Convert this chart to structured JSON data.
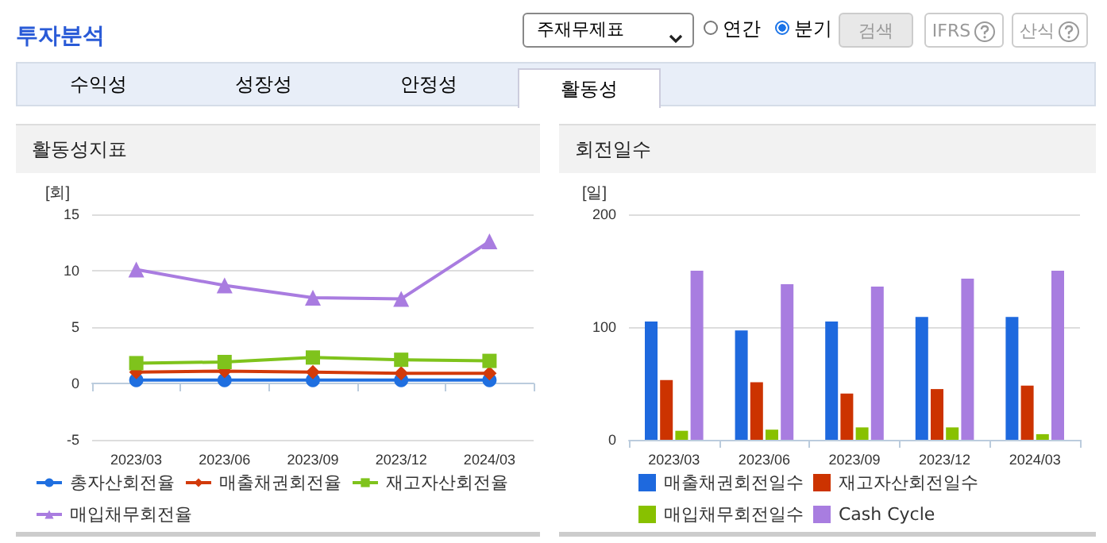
{
  "chart_data": [
    {
      "type": "other",
      "title": "투자분석",
      "annotations": [
        "주재무제표",
        "연간",
        "분기",
        "검색",
        "IFRS",
        "산식",
        "수익성",
        "성장성",
        "안정성",
        "활동성"
      ]
    },
    {
      "type": "line",
      "title": "활동성지표",
      "ylabel": "[회]",
      "categories": [
        "2023/03",
        "2023/06",
        "2023/09",
        "2023/12",
        "2024/03"
      ],
      "ylim": [
        -5,
        15
      ],
      "yticks": [
        -5,
        0,
        5,
        10,
        15
      ],
      "grid": "y",
      "legend": "bottom",
      "line_style": "solid",
      "series": [
        {
          "name": "총자산회전율",
          "color": "#1f6fe0",
          "marker": "circle",
          "values": [
            0.3,
            0.3,
            0.3,
            0.3,
            0.3
          ]
        },
        {
          "name": "매출채권회전율",
          "color": "#d23a0a",
          "marker": "diamond",
          "values": [
            1.0,
            1.1,
            1.0,
            0.9,
            0.9
          ]
        },
        {
          "name": "재고자산회전율",
          "color": "#7fc31c",
          "marker": "square",
          "values": [
            1.8,
            1.9,
            2.3,
            2.1,
            2.0
          ]
        },
        {
          "name": "매입채무회전율",
          "color": "#a97ce0",
          "marker": "triangle",
          "values": [
            10.1,
            8.7,
            7.6,
            7.5,
            12.6
          ]
        }
      ]
    },
    {
      "type": "bar",
      "title": "회전일수",
      "ylabel": "[일]",
      "categories": [
        "2023/03",
        "2023/06",
        "2023/09",
        "2023/12",
        "2024/03"
      ],
      "ylim": [
        0,
        200
      ],
      "yticks": [
        0,
        100,
        200
      ],
      "grid": "y",
      "legend": "bottom",
      "series": [
        {
          "name": "매출채권회전일수",
          "color": "#1e69de",
          "values": [
            105,
            97,
            105,
            109,
            109
          ]
        },
        {
          "name": "재고자산회전일수",
          "color": "#cc3300",
          "values": [
            53,
            51,
            41,
            45,
            48
          ]
        },
        {
          "name": "매입채무회전일수",
          "color": "#88c100",
          "values": [
            8,
            9,
            11,
            11,
            5
          ]
        },
        {
          "name": "Cash Cycle",
          "color": "#a87de0",
          "values": [
            150,
            138,
            136,
            143,
            150
          ]
        }
      ]
    }
  ]
}
